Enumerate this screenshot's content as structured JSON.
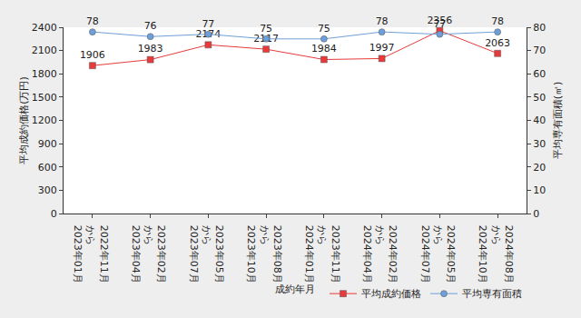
{
  "chart_data": {
    "type": "line",
    "x_label": "成約年月",
    "y_label": "平均成約価格(万円)",
    "y2_label": "平均専有面積(㎡)",
    "categories": [
      "2022年11月\nから\n2023年01月",
      "2023年02月\nから\n2023年04月",
      "2023年05月\nから\n2023年07月",
      "2023年08月\nから\n2023年10月",
      "2023年11月\nから\n2024年01月",
      "2024年02月\nから\n2024年04月",
      "2024年05月\nから\n2024年07月",
      "2024年08月\nから\n2024年10月"
    ],
    "series": [
      {
        "name": "平均成約価格",
        "color": "#e83a3a",
        "marker": "square",
        "axis": "y",
        "values": [
          1906,
          1983,
          2174,
          2117,
          1984,
          1997,
          2356,
          2063
        ]
      },
      {
        "name": "平均専有面積",
        "color": "#6f9fd8",
        "marker": "circle",
        "axis": "y2",
        "values": [
          78,
          76,
          77,
          75,
          75,
          78,
          77,
          78
        ]
      }
    ],
    "ylim": [
      0,
      2400
    ],
    "yticks": [
      0,
      300,
      600,
      900,
      1200,
      1500,
      1800,
      2100,
      2400
    ],
    "y2lim": [
      0,
      80
    ],
    "y2ticks": [
      0,
      10,
      20,
      30,
      40,
      50,
      60,
      70,
      80
    ],
    "grid": false,
    "legend": "bottom right",
    "data_labels": true
  }
}
